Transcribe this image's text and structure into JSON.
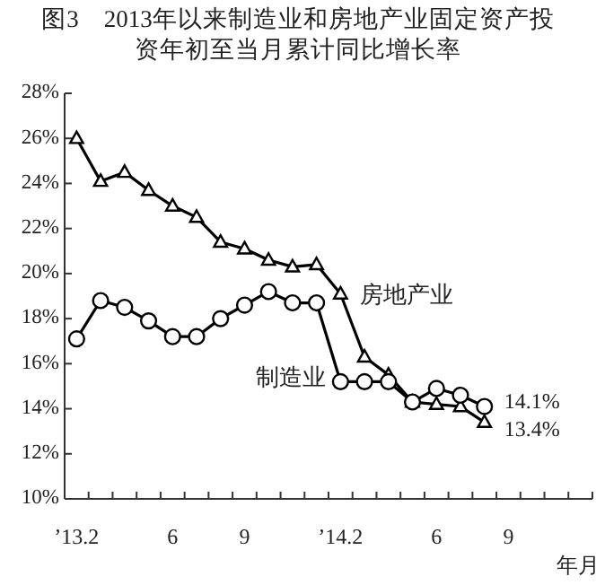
{
  "chart_data": {
    "type": "line",
    "title": "图3　2013年以来制造业和房地产业固定资产投资年初至当月累计同比增长率",
    "xlabel": "年月",
    "categories": [
      "’13.2",
      null,
      null,
      null,
      "6",
      null,
      null,
      "9",
      null,
      null,
      null,
      "’14.2",
      null,
      null,
      null,
      "6",
      null,
      null,
      "9",
      null,
      null,
      null
    ],
    "series": [
      {
        "name": "房地产业",
        "color": "#000000",
        "marker": "triangle",
        "values": [
          26.0,
          24.1,
          24.5,
          23.7,
          23.0,
          22.5,
          21.4,
          21.1,
          20.6,
          20.3,
          20.4,
          19.1,
          16.3,
          15.5,
          14.3,
          14.2,
          14.1,
          13.4,
          null,
          null,
          null,
          null
        ],
        "value_labels": [
          null,
          null,
          null,
          null,
          null,
          null,
          null,
          null,
          null,
          null,
          null,
          null,
          null,
          null,
          null,
          null,
          null,
          "13.4%",
          null,
          null,
          null,
          null
        ]
      },
      {
        "name": "制造业",
        "color": "#000000",
        "marker": "circle",
        "values": [
          17.1,
          18.8,
          18.5,
          17.9,
          17.2,
          17.2,
          18.0,
          18.6,
          19.2,
          18.7,
          18.7,
          15.2,
          15.2,
          15.2,
          14.3,
          14.9,
          14.6,
          14.1,
          null,
          null,
          null,
          null
        ],
        "value_labels": [
          null,
          null,
          null,
          null,
          null,
          null,
          null,
          null,
          null,
          null,
          null,
          null,
          null,
          null,
          null,
          null,
          null,
          "14.1%",
          null,
          null,
          null,
          null
        ]
      }
    ],
    "ylim": [
      10,
      28
    ],
    "yticks": [
      {
        "value": 10,
        "label": "10%"
      },
      {
        "value": 12,
        "label": "12%"
      },
      {
        "value": 14,
        "label": "14%"
      },
      {
        "value": 16,
        "label": "16%"
      },
      {
        "value": 18,
        "label": "18%"
      },
      {
        "value": 20,
        "label": "20%"
      },
      {
        "value": 22,
        "label": "22%"
      },
      {
        "value": 24,
        "label": "24%"
      },
      {
        "value": 26,
        "label": "26%"
      },
      {
        "value": 28,
        "label": "28%"
      }
    ],
    "grid": false,
    "legend": false,
    "line_style": "solid"
  }
}
